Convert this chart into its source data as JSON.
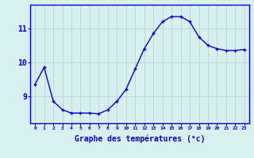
{
  "x": [
    0,
    1,
    2,
    3,
    4,
    5,
    6,
    7,
    8,
    9,
    10,
    11,
    12,
    13,
    14,
    15,
    16,
    17,
    18,
    19,
    20,
    21,
    22,
    23
  ],
  "y": [
    9.35,
    9.85,
    8.85,
    8.6,
    8.5,
    8.5,
    8.5,
    8.48,
    8.6,
    8.85,
    9.2,
    9.8,
    10.4,
    10.85,
    11.2,
    11.35,
    11.35,
    11.2,
    10.75,
    10.5,
    10.4,
    10.35,
    10.35,
    10.38
  ],
  "line_color": "#0000cc",
  "marker": "+",
  "marker_size": 3,
  "background_color": "#d8f0f0",
  "grid_color": "#b8d4d4",
  "axis_color": "#0000cc",
  "tick_color": "#0000cc",
  "xlabel": "Graphe des températures (°c)",
  "xlabel_fontsize": 7,
  "yticks": [
    9,
    10,
    11
  ],
  "ylim": [
    8.2,
    11.7
  ],
  "xlim": [
    -0.5,
    23.5
  ],
  "xtick_labels": [
    "0",
    "1",
    "2",
    "3",
    "4",
    "5",
    "6",
    "7",
    "8",
    "9",
    "10",
    "11",
    "12",
    "13",
    "14",
    "15",
    "16",
    "17",
    "18",
    "19",
    "20",
    "21",
    "22",
    "23"
  ],
  "line_width": 1.0,
  "marker_color": "#0000cc"
}
